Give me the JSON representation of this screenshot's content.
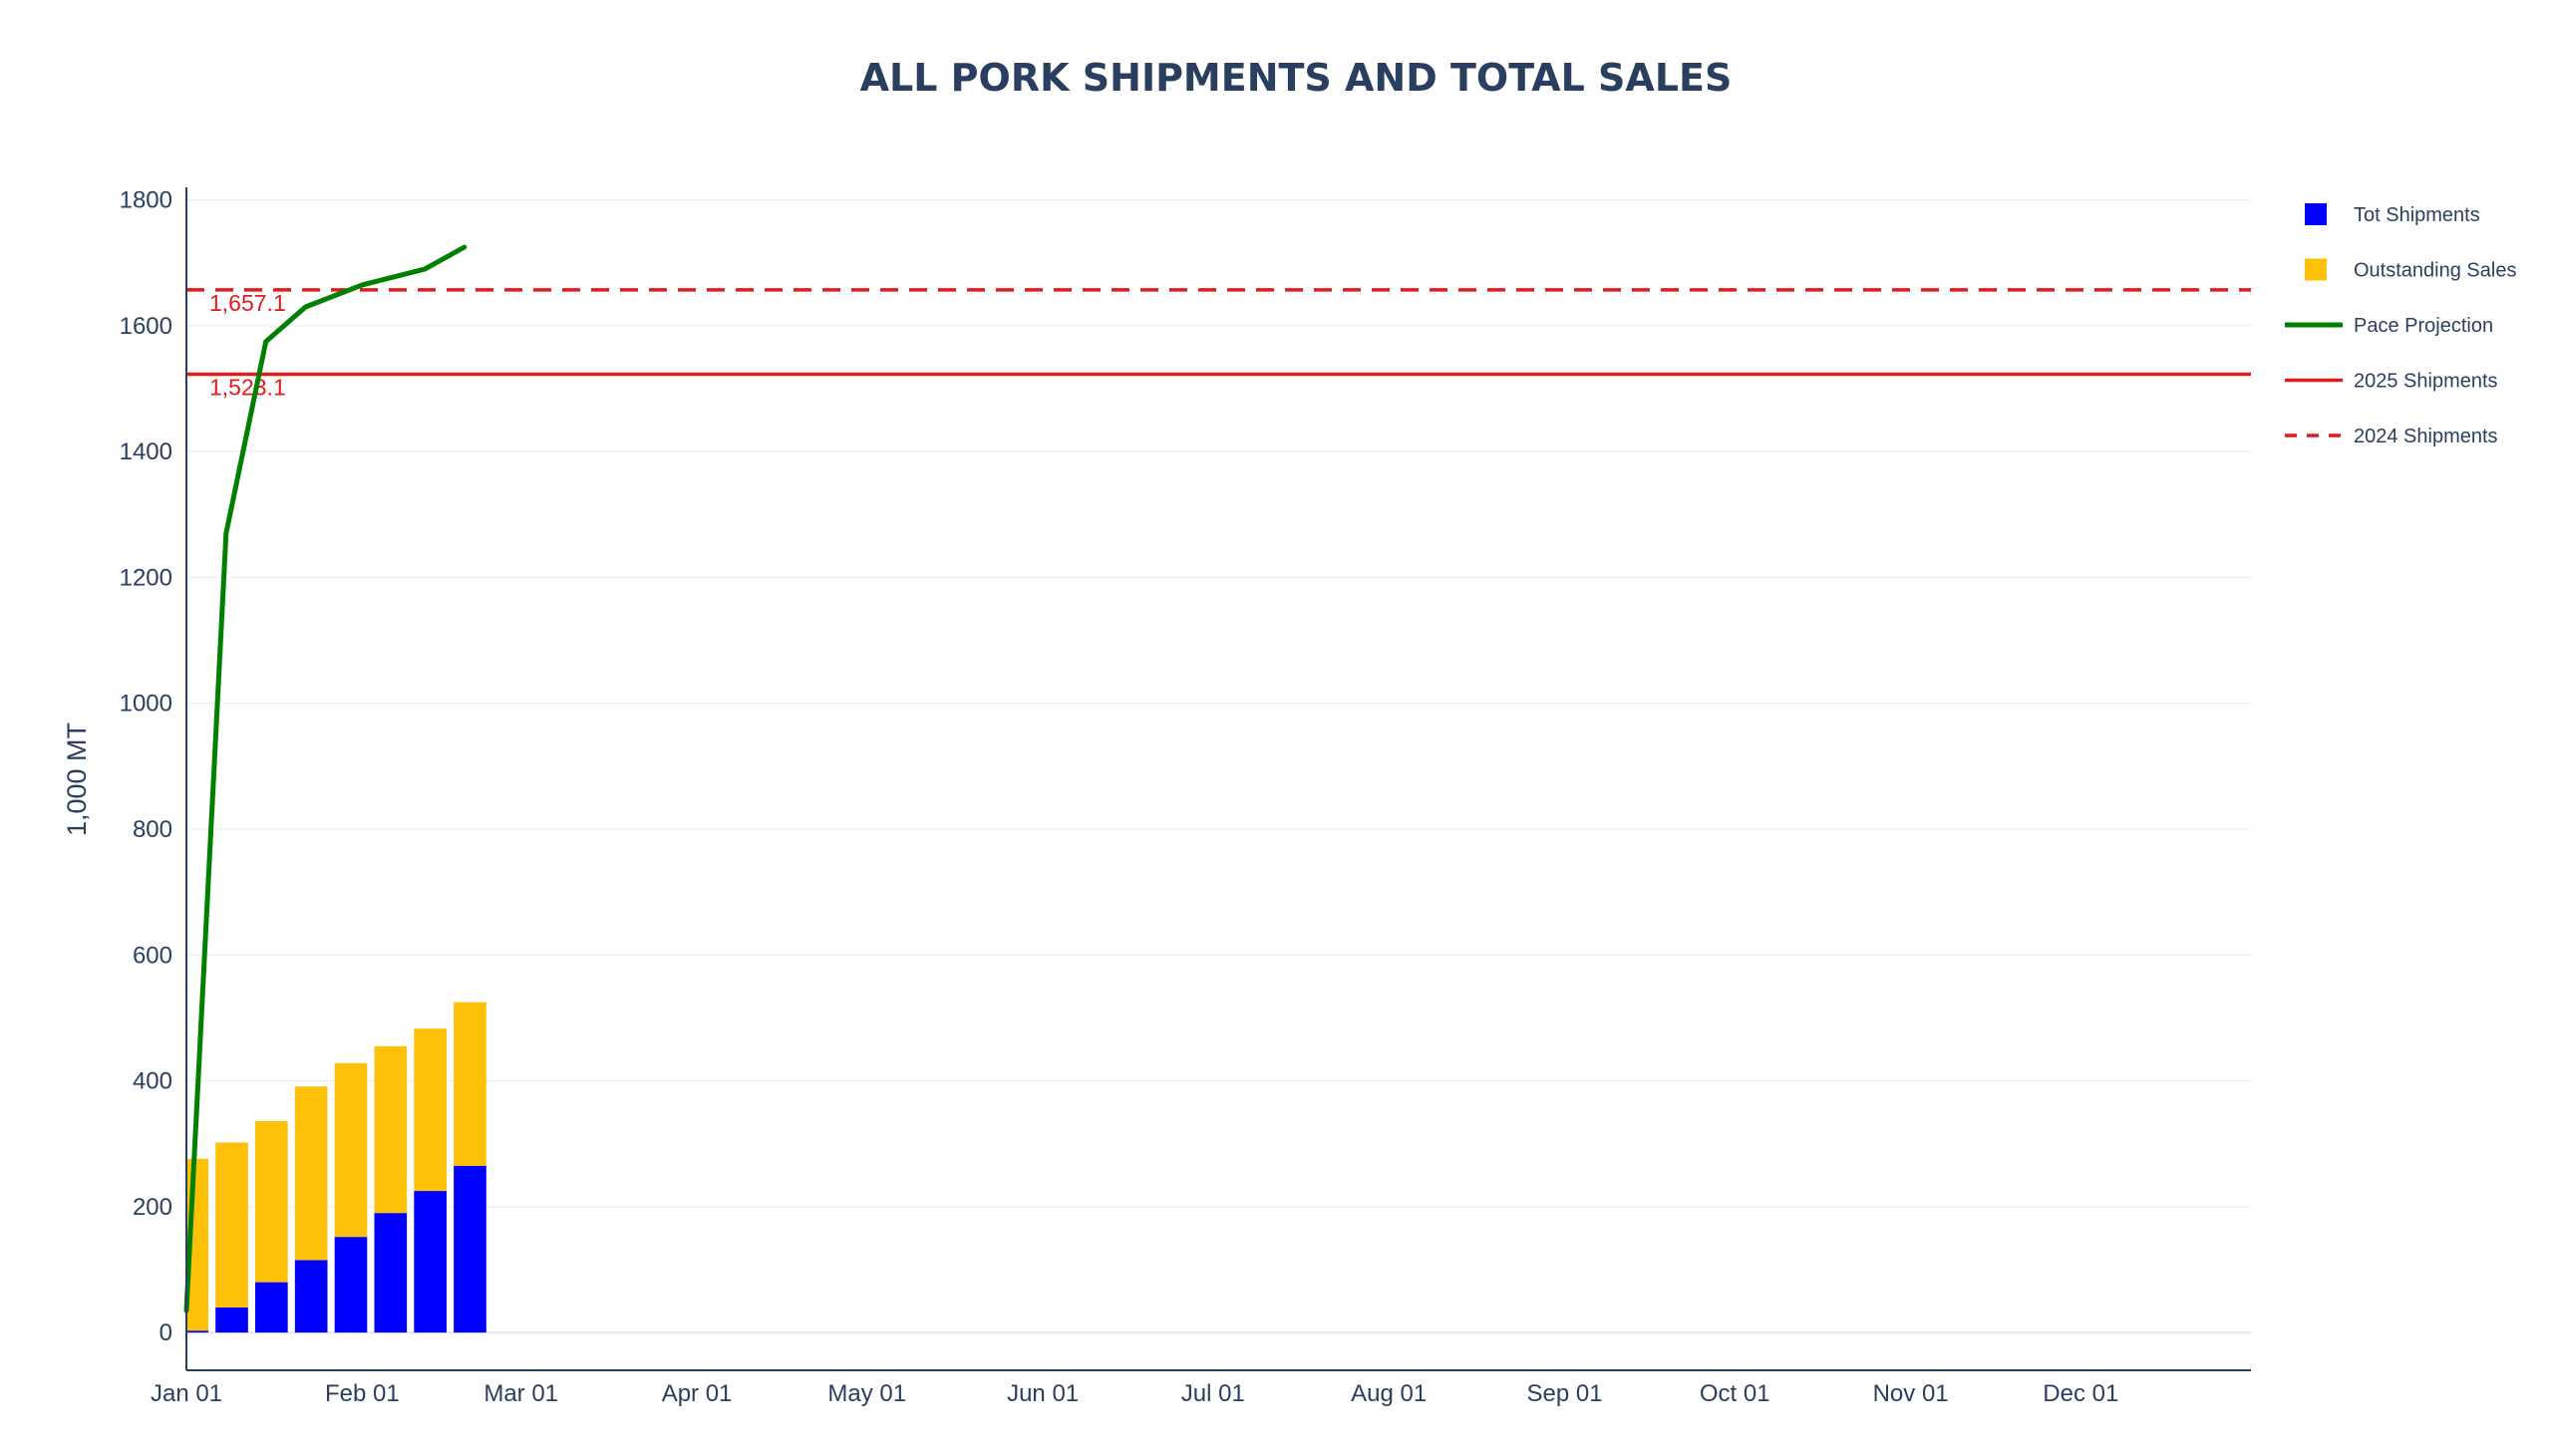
{
  "chart_data": {
    "type": "bar",
    "title": "ALL PORK SHIPMENTS AND TOTAL SALES",
    "xlabel": "",
    "ylabel": "1,000 MT",
    "barmode": "stack",
    "x_axis": {
      "type": "date",
      "range": [
        "2025-01-01",
        "2025-12-31"
      ],
      "tick_values": [
        "2025-01-01",
        "2025-02-01",
        "2025-03-01",
        "2025-04-01",
        "2025-05-01",
        "2025-06-01",
        "2025-07-01",
        "2025-08-01",
        "2025-09-01",
        "2025-10-01",
        "2025-11-01",
        "2025-12-01"
      ],
      "tick_labels": [
        "Jan 01",
        "Feb 01",
        "Mar 01",
        "Apr 01",
        "May 01",
        "Jun 01",
        "Jul 01",
        "Aug 01",
        "Sep 01",
        "Oct 01",
        "Nov 01",
        "Dec 01"
      ]
    },
    "y_axis": {
      "range": [
        -60,
        1820
      ],
      "tick_values": [
        0,
        200,
        400,
        600,
        800,
        1000,
        1200,
        1400,
        1600,
        1800
      ],
      "tick_labels": [
        "0",
        "200",
        "400",
        "600",
        "800",
        "1000",
        "1200",
        "1400",
        "1600",
        "1800"
      ],
      "grid": true
    },
    "x": [
      "2025-01-02",
      "2025-01-09",
      "2025-01-16",
      "2025-01-23",
      "2025-01-30",
      "2025-02-06",
      "2025-02-13",
      "2025-02-20"
    ],
    "series": [
      {
        "name": "Tot Shipments",
        "kind": "bar",
        "color": "#0000ff",
        "values": [
          3,
          40,
          80,
          115,
          152,
          190,
          225,
          265
        ]
      },
      {
        "name": "Outstanding Sales",
        "kind": "bar",
        "color": "#ffc107",
        "values": [
          273,
          262,
          256,
          276,
          276,
          265,
          258,
          260
        ]
      },
      {
        "name": "Pace Projection",
        "kind": "line",
        "color": "#008000",
        "x": [
          "2025-01-01",
          "2025-01-08",
          "2025-01-15",
          "2025-01-22",
          "2025-02-01",
          "2025-02-12",
          "2025-02-19"
        ],
        "values": [
          35,
          1270,
          1575,
          1630,
          1665,
          1690,
          1725
        ]
      }
    ],
    "reference_lines": [
      {
        "name": "2025 Shipments",
        "value": 1523.1,
        "label": "1,523.1",
        "color": "#e31a1c",
        "dash": "solid"
      },
      {
        "name": "2024 Shipments",
        "value": 1657.1,
        "label": "1,657.1",
        "color": "#e31a1c",
        "dash": "dash"
      }
    ],
    "legend": {
      "position": "top-right",
      "items": [
        {
          "label": "Tot Shipments",
          "symbol": "square",
          "color": "#0000ff"
        },
        {
          "label": "Outstanding Sales",
          "symbol": "square",
          "color": "#ffc107"
        },
        {
          "label": "Pace Projection",
          "symbol": "line",
          "color": "#008000"
        },
        {
          "label": "2025 Shipments",
          "symbol": "line",
          "color": "#e31a1c"
        },
        {
          "label": "2024 Shipments",
          "symbol": "dash",
          "color": "#e31a1c"
        }
      ]
    }
  }
}
